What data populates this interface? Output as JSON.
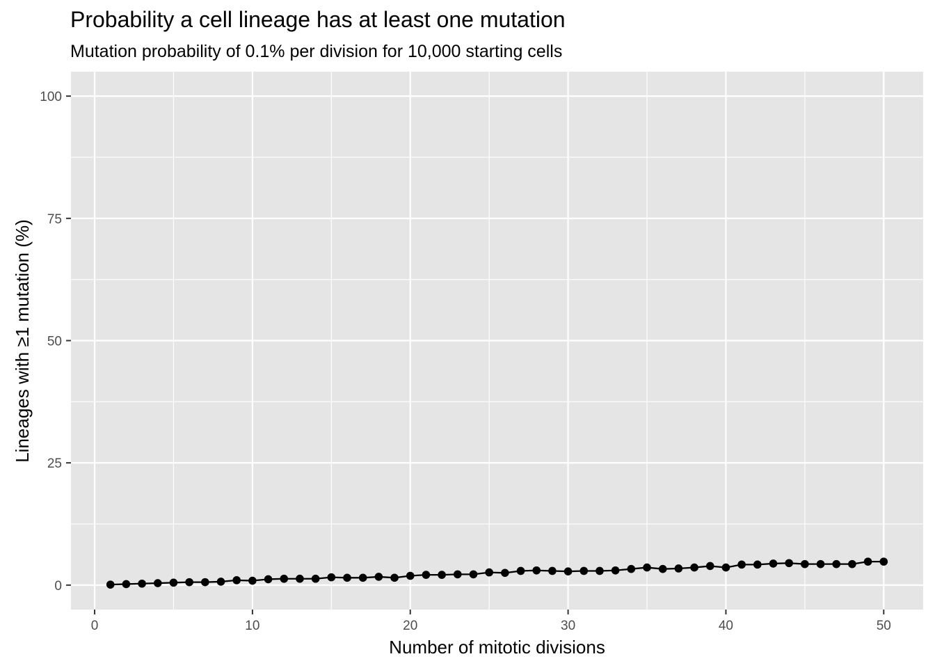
{
  "chart_data": {
    "type": "line",
    "title": "Probability a cell lineage has at least one mutation",
    "subtitle": "Mutation probability of 0.1% per division for 10,000 starting cells",
    "xlabel": "Number of mitotic divisions",
    "ylabel": "Lineages with ≥1 mutation (%)",
    "xlim": [
      -1.5,
      52.5
    ],
    "ylim": [
      -5,
      105
    ],
    "x_ticks": [
      0,
      10,
      20,
      30,
      40,
      50
    ],
    "y_ticks": [
      0,
      25,
      50,
      75,
      100
    ],
    "grid": true,
    "legend": "none",
    "colors": {
      "panel_background": "#e5e5e5",
      "gridline": "#ffffff",
      "series": "#000000",
      "tick_label": "#4d4d4d"
    },
    "series": [
      {
        "x": [
          1,
          2,
          3,
          4,
          5,
          6,
          7,
          8,
          9,
          10,
          11,
          12,
          13,
          14,
          15,
          16,
          17,
          18,
          19,
          20,
          21,
          22,
          23,
          24,
          25,
          26,
          27,
          28,
          29,
          30,
          31,
          32,
          33,
          34,
          35,
          36,
          37,
          38,
          39,
          40,
          41,
          42,
          43,
          44,
          45,
          46,
          47,
          48,
          49,
          50
        ],
        "values": [
          0.1,
          0.2,
          0.3,
          0.4,
          0.5,
          0.6,
          0.6,
          0.7,
          1.0,
          0.9,
          1.2,
          1.3,
          1.3,
          1.3,
          1.6,
          1.5,
          1.5,
          1.7,
          1.5,
          1.9,
          2.1,
          2.1,
          2.2,
          2.2,
          2.6,
          2.5,
          2.9,
          3.0,
          2.9,
          2.8,
          2.9,
          2.9,
          3.0,
          3.3,
          3.6,
          3.3,
          3.4,
          3.6,
          3.9,
          3.6,
          4.2,
          4.2,
          4.4,
          4.5,
          4.3,
          4.3,
          4.3,
          4.3,
          4.8,
          4.8
        ]
      }
    ]
  }
}
